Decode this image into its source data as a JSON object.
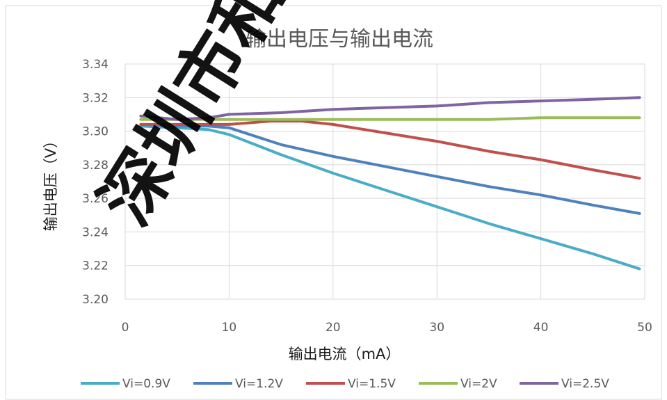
{
  "chart_data": {
    "type": "line",
    "title": "输出电压与输出电流",
    "xlabel": "输出电流（mA）",
    "ylabel": "输出电压（V）",
    "xlim": [
      0,
      50
    ],
    "ylim": [
      3.2,
      3.34
    ],
    "x_ticks": [
      0,
      10,
      20,
      30,
      40,
      50
    ],
    "y_ticks": [
      "3.20",
      "3.22",
      "3.24",
      "3.26",
      "3.28",
      "3.30",
      "3.32",
      "3.34"
    ],
    "grid": "vertical and horizontal major gridlines",
    "legend_position": "bottom",
    "series": [
      {
        "name": "Vi=0.9V",
        "color": "#4BACC6",
        "x": [
          1.5,
          5,
          8,
          10,
          15,
          20,
          25,
          30,
          35,
          40,
          45,
          49.5
        ],
        "y": [
          3.303,
          3.302,
          3.301,
          3.298,
          3.286,
          3.275,
          3.265,
          3.255,
          3.245,
          3.236,
          3.227,
          3.218
        ]
      },
      {
        "name": "Vi=1.2V",
        "color": "#4F81BD",
        "x": [
          1.5,
          5,
          8,
          10,
          15,
          20,
          25,
          30,
          35,
          40,
          45,
          49.5
        ],
        "y": [
          3.304,
          3.303,
          3.303,
          3.302,
          3.292,
          3.285,
          3.279,
          3.273,
          3.267,
          3.262,
          3.256,
          3.251
        ]
      },
      {
        "name": "Vi=1.5V",
        "color": "#C0504D",
        "x": [
          1.5,
          5,
          10,
          14,
          17,
          20,
          25,
          30,
          35,
          40,
          45,
          49.5
        ],
        "y": [
          3.304,
          3.304,
          3.304,
          3.306,
          3.306,
          3.304,
          3.299,
          3.294,
          3.288,
          3.283,
          3.277,
          3.272
        ]
      },
      {
        "name": "Vi=2V",
        "color": "#9BBB59",
        "x": [
          1.5,
          5,
          10,
          15,
          20,
          25,
          30,
          35,
          40,
          45,
          49.5
        ],
        "y": [
          3.307,
          3.307,
          3.307,
          3.307,
          3.307,
          3.307,
          3.307,
          3.307,
          3.308,
          3.308,
          3.308
        ]
      },
      {
        "name": "Vi=2.5V",
        "color": "#8064A2",
        "x": [
          1.5,
          5,
          8,
          10,
          15,
          20,
          25,
          30,
          35,
          40,
          45,
          49.5
        ],
        "y": [
          3.309,
          3.307,
          3.308,
          3.31,
          3.311,
          3.313,
          3.314,
          3.315,
          3.317,
          3.318,
          3.319,
          3.32
        ]
      }
    ]
  },
  "watermark": {
    "text": "深圳市和讯威",
    "visible_text": "深圳市和讯"
  }
}
